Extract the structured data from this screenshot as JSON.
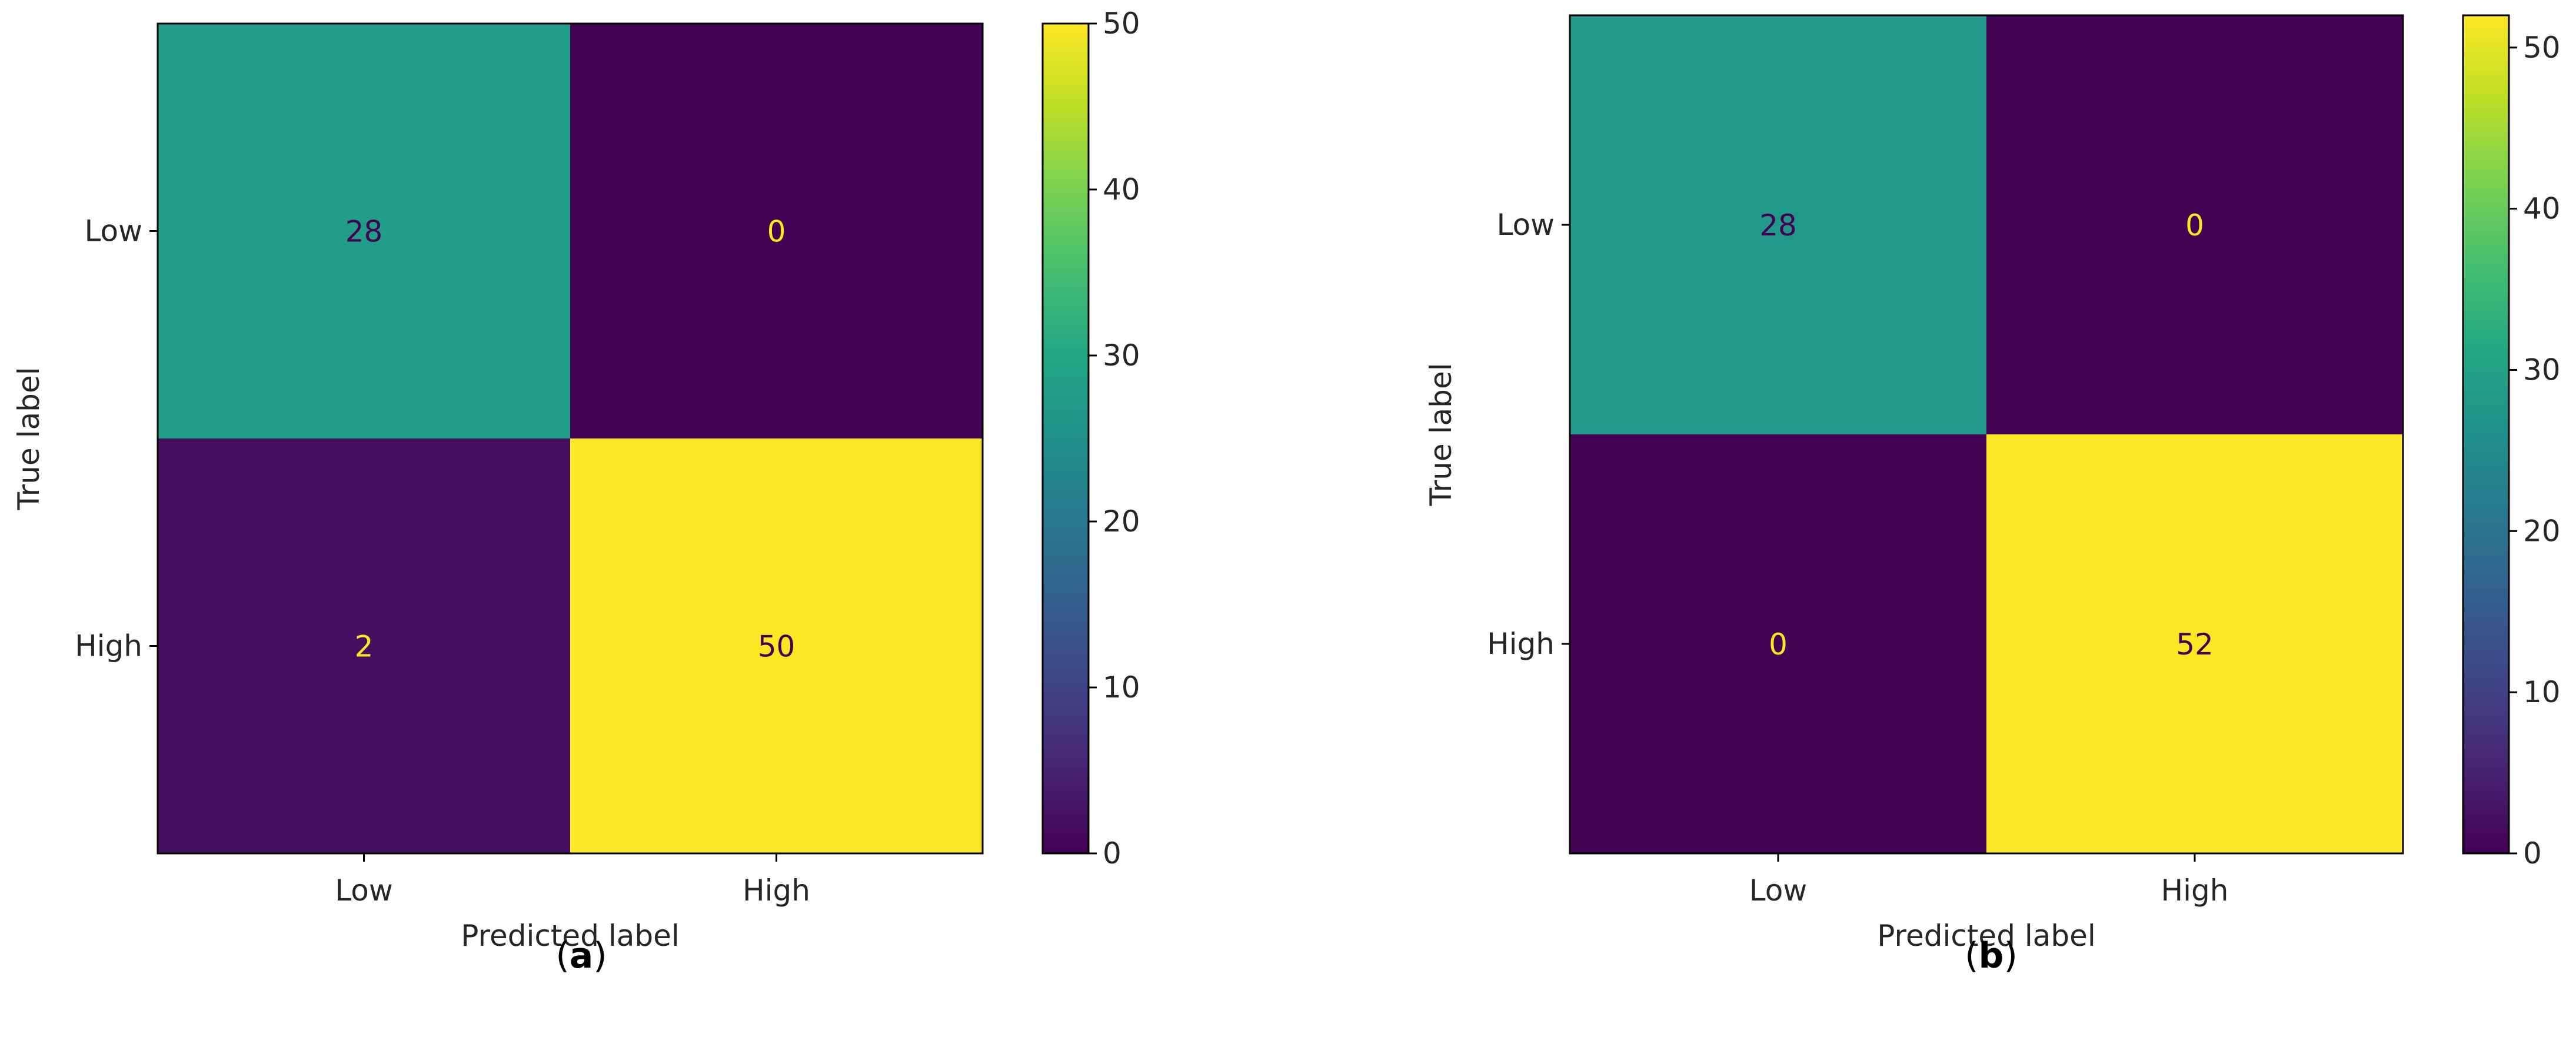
{
  "chart_data": [
    {
      "type": "heatmap",
      "panel_label": "a",
      "x_categories": [
        "Low",
        "High"
      ],
      "y_categories": [
        "Low",
        "High"
      ],
      "values": [
        [
          28,
          0
        ],
        [
          2,
          50
        ]
      ],
      "xlabel": "Predicted label",
      "ylabel": "True label",
      "colormap": "viridis",
      "colorbar": {
        "min": 0,
        "max": 50,
        "ticks": [
          0,
          10,
          20,
          30,
          40,
          50
        ]
      }
    },
    {
      "type": "heatmap",
      "panel_label": "b",
      "x_categories": [
        "Low",
        "High"
      ],
      "y_categories": [
        "Low",
        "High"
      ],
      "values": [
        [
          28,
          0
        ],
        [
          0,
          52
        ]
      ],
      "xlabel": "Predicted label",
      "ylabel": "True label",
      "colormap": "viridis",
      "colorbar": {
        "min": 0,
        "max": 52,
        "ticks": [
          0,
          10,
          20,
          30,
          40,
          50
        ]
      }
    }
  ]
}
